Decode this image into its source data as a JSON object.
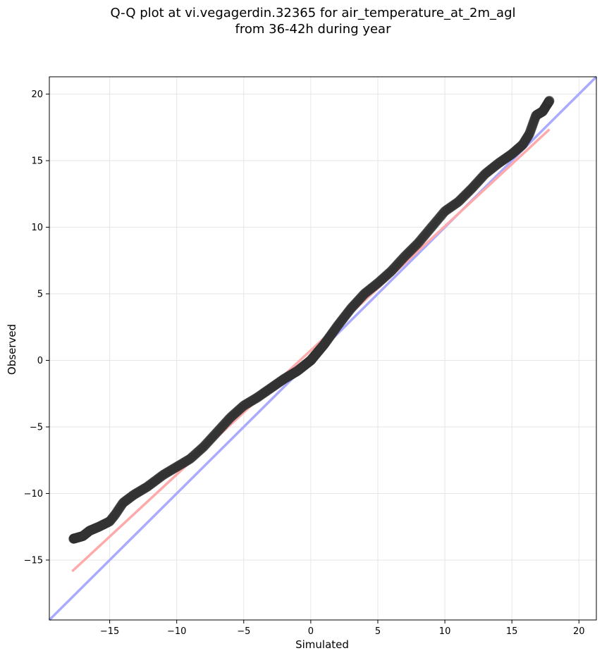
{
  "chart_data": {
    "type": "scatter",
    "title_lines": [
      "Q-Q plot at vi.vegagerdin.32365 for air_temperature_at_2m_agl",
      "from 36-42h during year"
    ],
    "xlabel": "Simulated",
    "ylabel": "Observed",
    "xlim": [
      -19.5,
      21.3
    ],
    "ylim": [
      -19.5,
      21.3
    ],
    "xticks": [
      -15,
      -10,
      -5,
      0,
      5,
      10,
      15,
      20
    ],
    "yticks": [
      -15,
      -10,
      -5,
      0,
      5,
      10,
      15,
      20
    ],
    "grid": true,
    "identity_line": {
      "color": "#aaaaff",
      "x": [
        -19.5,
        21.3
      ],
      "y": [
        -19.5,
        21.3
      ]
    },
    "fit_line": {
      "color": "#ffaaaa",
      "x": [
        -17.8,
        17.8
      ],
      "y": [
        -15.85,
        17.35
      ]
    },
    "quantile_anchors": {
      "x": [
        -17.7,
        -17.0,
        -16.5,
        -15.8,
        -15.0,
        -14.6,
        -14.0,
        -13.2,
        -12.2,
        -11.0,
        -10.0,
        -9.0,
        -8.0,
        -7.0,
        -6.0,
        -5.0,
        -4.0,
        -3.0,
        -2.0,
        -1.0,
        0.0,
        1.0,
        2.0,
        3.0,
        4.0,
        5.0,
        6.0,
        7.0,
        8.0,
        9.0,
        10.0,
        11.0,
        12.0,
        13.0,
        14.0,
        15.0,
        15.8,
        16.3,
        16.8,
        17.3,
        17.8
      ],
      "y": [
        -13.4,
        -13.2,
        -12.8,
        -12.5,
        -12.1,
        -11.6,
        -10.7,
        -10.1,
        -9.5,
        -8.6,
        -8.0,
        -7.4,
        -6.5,
        -5.4,
        -4.3,
        -3.4,
        -2.8,
        -2.1,
        -1.4,
        -0.8,
        0.0,
        1.2,
        2.6,
        3.9,
        5.0,
        5.8,
        6.7,
        7.8,
        8.8,
        10.0,
        11.2,
        11.9,
        12.9,
        14.0,
        14.8,
        15.5,
        16.2,
        17.0,
        18.4,
        18.7,
        19.5
      ]
    },
    "point_count": 1200
  }
}
